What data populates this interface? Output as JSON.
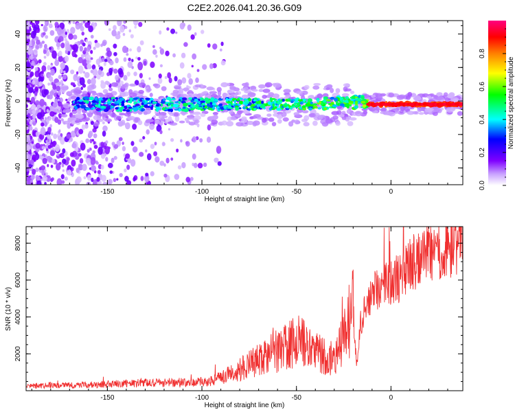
{
  "title": "C2E2.2026.041.20.36.G09",
  "chart_data": [
    {
      "type": "heatmap",
      "title": "C2E2.2026.041.20.36.G09",
      "xlabel": "Height of straight line (km)",
      "ylabel": "Frequency (Hz)",
      "xlim": [
        -193,
        38
      ],
      "ylim": [
        -50,
        48
      ],
      "xticks": [
        -150,
        -100,
        -50,
        0
      ],
      "yticks": [
        -40,
        -20,
        0,
        20,
        40
      ],
      "colorbar": {
        "label": "Normalized spectral amplitude",
        "range": [
          0,
          1
        ],
        "ticks": [
          "0.0",
          "0.2",
          "0.4",
          "0.6",
          "0.8"
        ],
        "colors": [
          "#ffffff",
          "#c8a0ff",
          "#7f00ff",
          "#0000ff",
          "#00ffff",
          "#00ff00",
          "#ffff00",
          "#ff8000",
          "#ff0000",
          "#ff00a0"
        ]
      },
      "dominant_frequency_hz": -2,
      "band_start_km": -168
    },
    {
      "type": "line",
      "xlabel": "Height of straight line (km)",
      "ylabel": "SNR (10 * v/v)",
      "xlim": [
        -193,
        38
      ],
      "ylim": [
        0,
        8900
      ],
      "xticks": [
        -150,
        -100,
        -50,
        0
      ],
      "yticks": [
        2000,
        4000,
        6000,
        8000
      ],
      "series": [
        {
          "name": "SNR",
          "color": "#f03030",
          "x": [
            -193,
            -180,
            -165,
            -150,
            -135,
            -120,
            -105,
            -95,
            -85,
            -75,
            -65,
            -55,
            -48,
            -42,
            -36,
            -30,
            -26,
            -22,
            -20,
            -18,
            -16,
            -14,
            -12,
            -10,
            -8,
            -6,
            -4,
            -2,
            0,
            5,
            10,
            15,
            20,
            25,
            30,
            38
          ],
          "y": [
            250,
            280,
            300,
            350,
            420,
            450,
            450,
            550,
            900,
            1400,
            1900,
            2400,
            2700,
            2300,
            1900,
            1800,
            2600,
            3800,
            4300,
            1400,
            3600,
            4600,
            5200,
            4900,
            5600,
            5300,
            5800,
            5500,
            5900,
            6100,
            6800,
            7200,
            7500,
            7600,
            7800,
            7700
          ]
        }
      ]
    }
  ]
}
